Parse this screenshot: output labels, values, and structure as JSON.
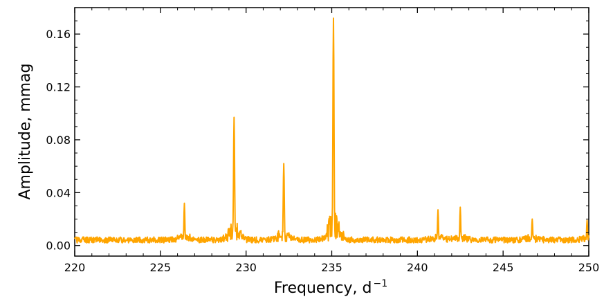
{
  "chart_data": {
    "type": "line",
    "title": "",
    "xlabel_main": "Frequency, d",
    "xlabel_sup": "−1",
    "ylabel": "Amplitude, mmag",
    "xlim": [
      220,
      250
    ],
    "ylim": [
      -0.008,
      0.18
    ],
    "x_ticks": [
      220,
      225,
      230,
      235,
      240,
      245,
      250
    ],
    "x_tick_labels": [
      "220",
      "225",
      "230",
      "235",
      "240",
      "245",
      "250"
    ],
    "y_ticks": [
      0.0,
      0.04,
      0.08,
      0.12,
      0.16
    ],
    "y_tick_labels": [
      "0.00",
      "0.04",
      "0.08",
      "0.12",
      "0.16"
    ],
    "grid": false,
    "line_color": "#FFA500",
    "series": [
      {
        "noise_level": 0.005,
        "peaks": [
          {
            "x": 226.4,
            "y": 0.032
          },
          {
            "x": 229.3,
            "y": 0.097
          },
          {
            "x": 232.2,
            "y": 0.062
          },
          {
            "x": 235.1,
            "y": 0.172
          },
          {
            "x": 241.2,
            "y": 0.027
          },
          {
            "x": 242.5,
            "y": 0.029
          },
          {
            "x": 246.7,
            "y": 0.02
          },
          {
            "x": 249.9,
            "y": 0.019
          }
        ]
      }
    ]
  }
}
